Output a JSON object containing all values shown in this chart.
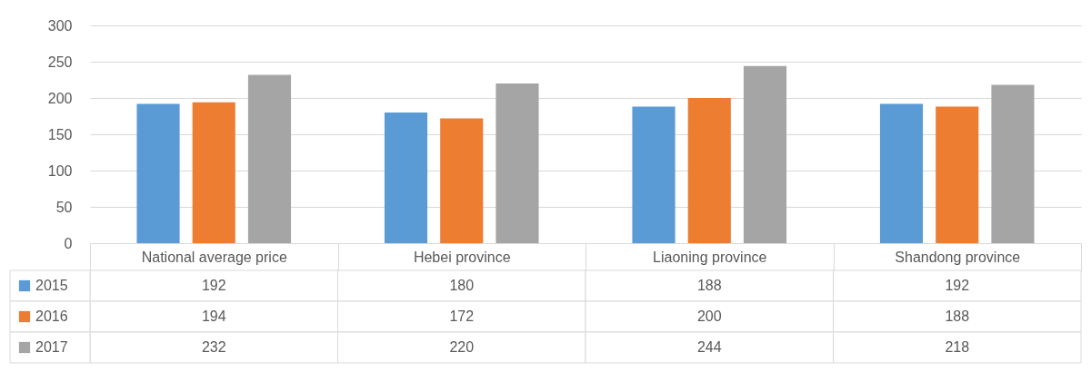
{
  "chart_data": {
    "type": "bar",
    "categories": [
      "National average price",
      "Hebei province",
      "Liaoning province",
      "Shandong province"
    ],
    "series": [
      {
        "name": "2015",
        "color": "#5b9bd5",
        "values": [
          192,
          180,
          188,
          192
        ]
      },
      {
        "name": "2016",
        "color": "#ed7d31",
        "values": [
          194,
          172,
          200,
          188
        ]
      },
      {
        "name": "2017",
        "color": "#a5a5a5",
        "values": [
          232,
          220,
          244,
          218
        ]
      }
    ],
    "ylim": [
      0,
      300
    ],
    "yticks": [
      0,
      50,
      100,
      150,
      200,
      250,
      300
    ],
    "grid": "y",
    "legend": "bottom left",
    "data_labels": true
  }
}
